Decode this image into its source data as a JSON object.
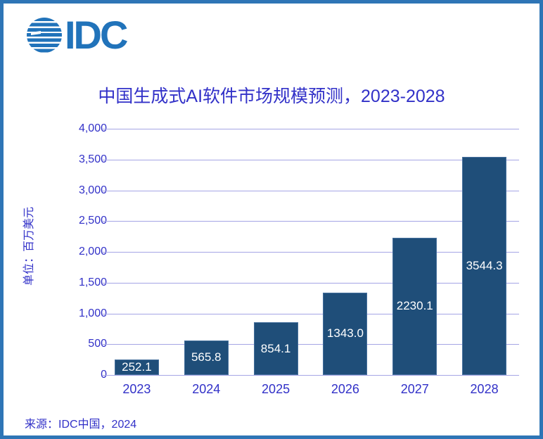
{
  "logo": {
    "text": "IDC"
  },
  "title": "中国生成式AI软件市场规模预测，2023-2028",
  "source": "来源：IDC中国，2024",
  "colors": {
    "frame_border": "#2E75B6",
    "logo_blue": "#2173BA",
    "text_indigo": "#3231C8",
    "gridline": "#A5A5E5",
    "bar_fill": "#1F4E79",
    "bar_label": "#FFFFFF"
  },
  "chart_data": {
    "type": "bar",
    "title": "中国生成式AI软件市场规模预测，2023-2028",
    "categories": [
      "2023",
      "2024",
      "2025",
      "2026",
      "2027",
      "2028"
    ],
    "values": [
      252.1,
      565.8,
      854.1,
      1343.0,
      2230.1,
      3544.3
    ],
    "value_labels": [
      "252.1",
      "565.8",
      "854.1",
      "1343.0",
      "2230.1",
      "3544.3"
    ],
    "xlabel": "",
    "ylabel": "单位：百万美元",
    "ylim": [
      0,
      4000
    ],
    "ytick_interval": 500,
    "ytick_labels": [
      "4,000",
      "3,500",
      "3,000",
      "2,500",
      "2,000",
      "1,500",
      "1,000",
      "500",
      "0"
    ],
    "grid": true,
    "legend": false,
    "value_label_position": "inside-center"
  }
}
